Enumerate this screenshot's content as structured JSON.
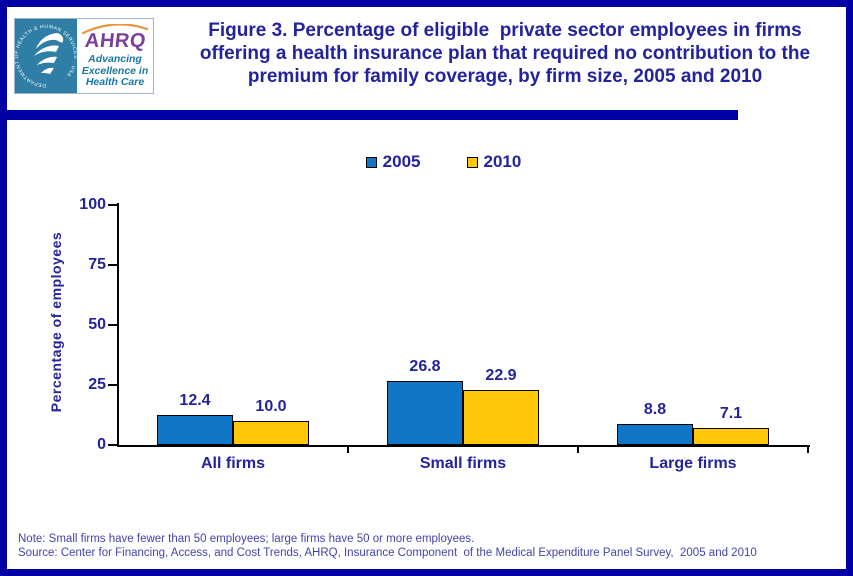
{
  "header": {
    "title_lines": [
      "Figure 3. Percentage of eligible  private sector employees in firms",
      "offering a health insurance plan that required no contribution to the",
      "premium for family coverage, by firm size, 2005 and 2010"
    ],
    "logo": {
      "seal_ring_text": "DEPARTMENT OF HEALTH & HUMAN SERVICES · USA ·",
      "ahrq": "AHRQ",
      "tagline_lines": [
        "Advancing",
        "Excellence in",
        "Health Care"
      ]
    }
  },
  "chart_data": {
    "type": "bar",
    "title": "Figure 3. Percentage of eligible private sector employees in firms offering a health insurance plan that required no contribution to the premium for family coverage, by firm size, 2005 and 2010",
    "categories": [
      "All firms",
      "Small firms",
      "Large firms"
    ],
    "series": [
      {
        "name": "2005",
        "color": "#1076C8",
        "values": [
          12.4,
          26.8,
          8.8
        ],
        "labels": [
          "12.4",
          "26.8",
          "8.8"
        ]
      },
      {
        "name": "2010",
        "color": "#FFC70A",
        "values": [
          10.0,
          22.9,
          7.1
        ],
        "labels": [
          "10.0",
          "22.9",
          "7.1"
        ]
      }
    ],
    "xlabel": "",
    "ylabel": "Percentage of employees",
    "ylim": [
      0,
      100
    ],
    "yticks": [
      0,
      25,
      50,
      75,
      100
    ],
    "grid": false,
    "legend_position": "top-center",
    "value_labels": true
  },
  "footer": {
    "note": "Note: Small firms have fewer than 50 employees; large firms have 50 or more employees.",
    "source": "Source: Center for Financing, Access, and Cost Trends, AHRQ, Insurance Component  of the Medical Expenditure Panel Survey,  2005 and 2010"
  },
  "colors": {
    "frame_border": "#0000A4",
    "title_text": "#23239E",
    "note_text": "#4444AC",
    "bar_2005": "#1076C8",
    "bar_2010": "#FFC70A",
    "seal_background": "#2E7EA5",
    "ahrq_purple": "#7B3F9B",
    "tagline_teal": "#1878A2",
    "swoosh_orange": "#E8953B"
  }
}
